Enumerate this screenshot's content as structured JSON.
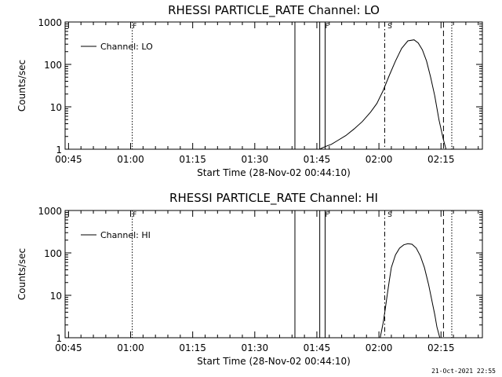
{
  "chart_data": [
    {
      "type": "line",
      "title": "RHESSI PARTICLE_RATE Channel: LO",
      "xlabel": "Start Time (28-Nov-02 00:44:10)",
      "ylabel": "Counts/sec",
      "yscale": "log",
      "xlim_min": [
        44.17,
        145.0
      ],
      "ylim": [
        1,
        1000
      ],
      "xtick_min": [
        45,
        60,
        75,
        90,
        105,
        120,
        135
      ],
      "xtick_labels": [
        "00:45",
        "01:00",
        "01:15",
        "01:30",
        "01:45",
        "02:00",
        "02:15"
      ],
      "ytick_values": [
        1,
        10,
        100,
        1000
      ],
      "ytick_labels": [
        "1",
        "10",
        "100",
        "1000"
      ],
      "legend": "Channel: LO",
      "flags": [
        {
          "text": "F",
          "x_min": 60.3
        },
        {
          "text": "F",
          "x_min": 106.8
        },
        {
          "text": "S",
          "x_min": 121.9
        }
      ],
      "vlines": [
        {
          "x_min": 60.4,
          "style": "dotted"
        },
        {
          "x_min": 99.7,
          "style": "solid"
        },
        {
          "x_min": 105.7,
          "style": "solid"
        },
        {
          "x_min": 107.0,
          "style": "solid"
        },
        {
          "x_min": 121.4,
          "style": "dashdot"
        },
        {
          "x_min": 135.6,
          "style": "dashed"
        },
        {
          "x_min": 137.6,
          "style": "dotted"
        }
      ],
      "series": [
        {
          "name": "Channel: LO",
          "x_min": [
            105.7,
            106.5,
            107.5,
            108.5,
            110,
            112,
            114,
            116,
            118,
            119.5,
            121,
            122.5,
            124,
            125.5,
            127,
            128.5,
            129.5,
            130.5,
            131.5,
            132.5,
            133.5,
            134.5,
            135.5,
            136.2
          ],
          "y": [
            1,
            1.1,
            1.2,
            1.3,
            1.6,
            2.1,
            3.0,
            4.5,
            7.5,
            12,
            24,
            55,
            120,
            240,
            360,
            380,
            320,
            220,
            120,
            50,
            18,
            5,
            1.8,
            1
          ]
        }
      ]
    },
    {
      "type": "line",
      "title": "RHESSI PARTICLE_RATE Channel: HI",
      "xlabel": "Start Time (28-Nov-02 00:44:10)",
      "ylabel": "Counts/sec",
      "yscale": "log",
      "xlim_min": [
        44.17,
        145.0
      ],
      "ylim": [
        1,
        1000
      ],
      "xtick_min": [
        45,
        60,
        75,
        90,
        105,
        120,
        135
      ],
      "xtick_labels": [
        "00:45",
        "01:00",
        "01:15",
        "01:30",
        "01:45",
        "02:00",
        "02:15"
      ],
      "ytick_values": [
        1,
        10,
        100,
        1000
      ],
      "ytick_labels": [
        "1",
        "10",
        "100",
        "1000"
      ],
      "legend": "Channel: HI",
      "flags": [
        {
          "text": "F",
          "x_min": 60.3
        },
        {
          "text": "F",
          "x_min": 106.8
        },
        {
          "text": "S",
          "x_min": 121.9
        }
      ],
      "vlines": [
        {
          "x_min": 60.4,
          "style": "dotted"
        },
        {
          "x_min": 99.7,
          "style": "solid"
        },
        {
          "x_min": 105.7,
          "style": "solid"
        },
        {
          "x_min": 107.0,
          "style": "solid"
        },
        {
          "x_min": 121.4,
          "style": "dashdot"
        },
        {
          "x_min": 135.6,
          "style": "dashed"
        },
        {
          "x_min": 137.6,
          "style": "dotted"
        }
      ],
      "series": [
        {
          "name": "Channel: HI",
          "x_min": [
            120.3,
            121,
            121.5,
            122,
            122.5,
            123,
            124,
            125,
            126,
            127,
            128,
            129,
            130,
            131,
            132,
            133,
            133.5,
            134,
            134.7
          ],
          "y": [
            1,
            2.2,
            4.5,
            10,
            22,
            45,
            90,
            130,
            155,
            165,
            160,
            130,
            85,
            45,
            18,
            6,
            3.5,
            1.8,
            1
          ]
        }
      ]
    }
  ],
  "footer": "21-Oct-2021 22:55"
}
